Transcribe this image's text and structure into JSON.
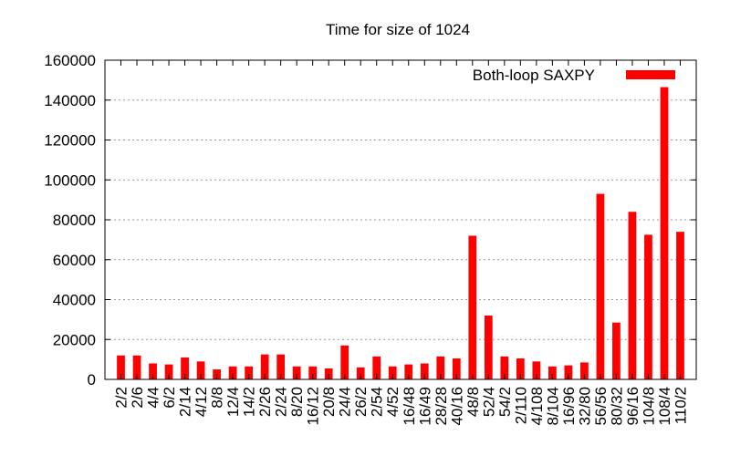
{
  "chart_data": {
    "type": "bar",
    "title": "Time for size of 1024",
    "xlabel": "",
    "ylabel": "",
    "ylim": [
      0,
      160000
    ],
    "yticks": [
      0,
      20000,
      40000,
      60000,
      80000,
      100000,
      120000,
      140000,
      160000
    ],
    "grid": true,
    "legend_position": "top-right",
    "series": [
      {
        "name": "Both-loop SAXPY",
        "color": "#ff0000",
        "values": [
          12000,
          12000,
          8000,
          7500,
          11000,
          9000,
          5000,
          6500,
          6500,
          12500,
          12500,
          6500,
          6500,
          5500,
          17000,
          6000,
          11500,
          6500,
          7500,
          8000,
          11500,
          10500,
          72000,
          32000,
          11500,
          10500,
          9000,
          6500,
          7000,
          8500,
          93000,
          28500,
          84000,
          72500,
          146500,
          74000
        ]
      }
    ],
    "categories": [
      "2/2",
      "2/6",
      "4/4",
      "6/2",
      "2/14",
      "4/12",
      "8/8",
      "12/4",
      "14/2",
      "2/26",
      "2/24",
      "8/20",
      "16/12",
      "20/8",
      "24/4",
      "26/2",
      "2/54",
      "4/52",
      "16/48",
      "16/49",
      "28/28",
      "40/16",
      "48/8",
      "52/4",
      "54/2",
      "2/110",
      "4/108",
      "8/104",
      "16/96",
      "32/80",
      "56/56",
      "80/32",
      "96/16",
      "104/8",
      "108/4",
      "110/2"
    ]
  }
}
